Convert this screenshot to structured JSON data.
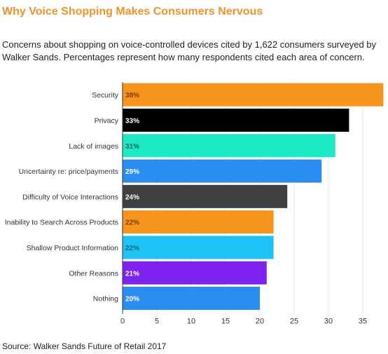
{
  "title": "Why Voice Shopping Makes Consumers Nervous",
  "subtitle": "Concerns about shopping on voice-controlled devices cited by 1,622 consumers surveyed by Walker Sands. Percentages represent how many respondents cited each area of concern.",
  "source": "Source: Walker Sands Future of Retail 2017",
  "chart_data": {
    "type": "bar",
    "orientation": "horizontal",
    "categories": [
      "Security",
      "Privacy",
      "Lack of images",
      "Uncertainty re: price/payments",
      "Difficulty of Voice Interactions",
      "Inability to Search Across Products",
      "Shallow Product Information",
      "Other Reasons",
      "Nothing"
    ],
    "values": [
      38,
      33,
      31,
      29,
      24,
      22,
      22,
      21,
      20
    ],
    "labels": [
      "38%",
      "33%",
      "31%",
      "29%",
      "24%",
      "22%",
      "22%",
      "21%",
      "20%"
    ],
    "colors": [
      "#f7941d",
      "#000000",
      "#1de9c5",
      "#2a8ef0",
      "#404040",
      "#f7941d",
      "#1ec3f5",
      "#7e22f0",
      "#2a8ef0"
    ],
    "label_colors": [
      "#7a3f00",
      "#ffffff",
      "#0b6b59",
      "#ffffff",
      "#ffffff",
      "#7a3f00",
      "#0b6b7a",
      "#ffffff",
      "#ffffff"
    ],
    "xticks": [
      "0",
      "5",
      "10",
      "15",
      "20",
      "25",
      "30",
      "35"
    ],
    "xlim": [
      0,
      39
    ],
    "grid": true
  }
}
